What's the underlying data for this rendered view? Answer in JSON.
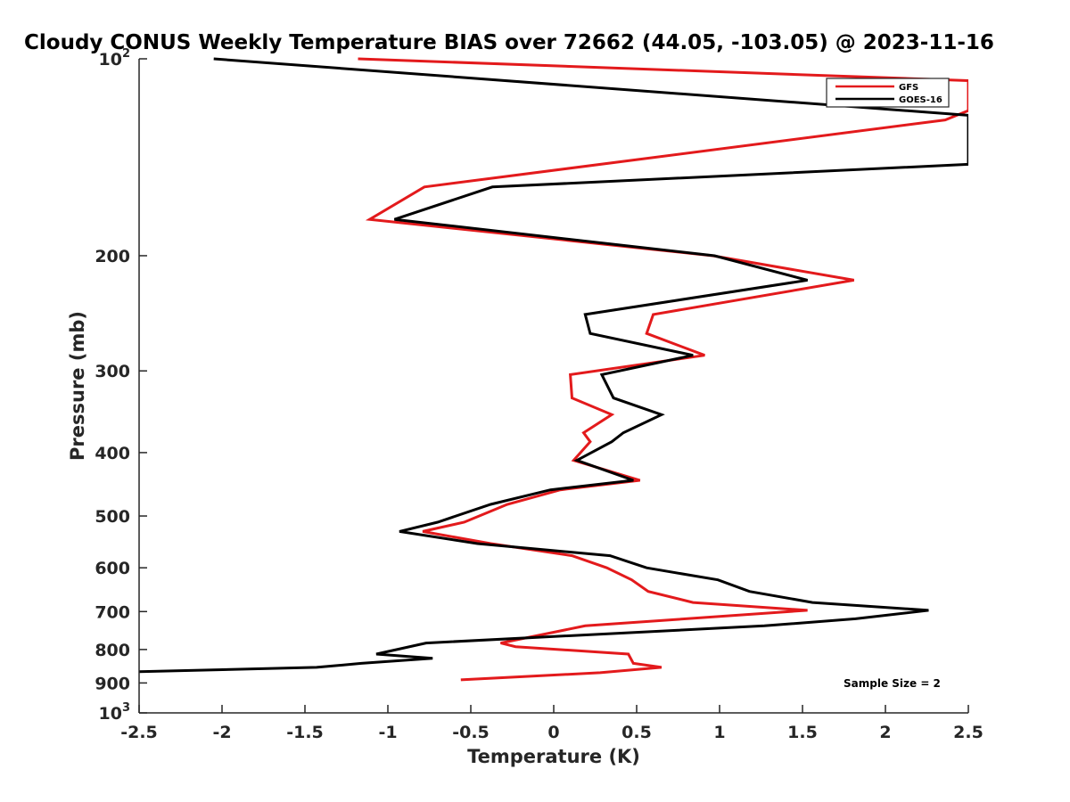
{
  "chart_data": {
    "type": "line",
    "title": "Cloudy CONUS Weekly Temperature BIAS over 72662 (44.05, -103.05) @ 2023-11-16",
    "xlabel": "Temperature (K)",
    "ylabel": "Pressure (mb)",
    "xlim": [
      -2.5,
      2.5
    ],
    "ylim": [
      100,
      1000
    ],
    "yscale": "log",
    "yreversed": true,
    "xticks": [
      "-2.5",
      "-2",
      "-1.5",
      "-1",
      "-0.5",
      "0",
      "0.5",
      "1",
      "1.5",
      "2",
      "2.5"
    ],
    "xtick_values": [
      -2.5,
      -2,
      -1.5,
      -1,
      -0.5,
      0,
      0.5,
      1,
      1.5,
      2,
      2.5
    ],
    "yticks": [
      {
        "value": 100,
        "base": "10",
        "exp": "2"
      },
      {
        "value": 200,
        "label": "200"
      },
      {
        "value": 300,
        "label": "300"
      },
      {
        "value": 400,
        "label": "400"
      },
      {
        "value": 500,
        "label": "500"
      },
      {
        "value": 600,
        "label": "600"
      },
      {
        "value": 700,
        "label": "700"
      },
      {
        "value": 800,
        "label": "800"
      },
      {
        "value": 900,
        "label": "900"
      },
      {
        "value": 1000,
        "base": "10",
        "exp": "3"
      }
    ],
    "legend_position": "top-right",
    "annotation": "Sample Size = 2",
    "series": [
      {
        "name": "GFS",
        "color": "#e31a1c",
        "points": [
          {
            "x": -1.18,
            "p": 100
          },
          {
            "x": 2.5,
            "p": 108
          },
          {
            "x": 2.5,
            "p": 120
          },
          {
            "x": 2.36,
            "p": 124
          },
          {
            "x": -0.78,
            "p": 157
          },
          {
            "x": -1.11,
            "p": 176
          },
          {
            "x": 0.96,
            "p": 200
          },
          {
            "x": 1.81,
            "p": 218
          },
          {
            "x": 0.6,
            "p": 246
          },
          {
            "x": 0.56,
            "p": 263
          },
          {
            "x": 0.91,
            "p": 284
          },
          {
            "x": 0.1,
            "p": 304
          },
          {
            "x": 0.11,
            "p": 330
          },
          {
            "x": 0.35,
            "p": 350
          },
          {
            "x": 0.18,
            "p": 373
          },
          {
            "x": 0.22,
            "p": 385
          },
          {
            "x": 0.12,
            "p": 411
          },
          {
            "x": 0.52,
            "p": 441
          },
          {
            "x": 0.04,
            "p": 456
          },
          {
            "x": -0.28,
            "p": 480
          },
          {
            "x": -0.4,
            "p": 494
          },
          {
            "x": -0.54,
            "p": 511
          },
          {
            "x": -0.79,
            "p": 528
          },
          {
            "x": -0.38,
            "p": 551
          },
          {
            "x": 0.11,
            "p": 575
          },
          {
            "x": 0.32,
            "p": 600
          },
          {
            "x": 0.47,
            "p": 626
          },
          {
            "x": 0.57,
            "p": 652
          },
          {
            "x": 0.84,
            "p": 678
          },
          {
            "x": 1.53,
            "p": 697
          },
          {
            "x": 0.19,
            "p": 736
          },
          {
            "x": -0.32,
            "p": 782
          },
          {
            "x": -0.23,
            "p": 792
          },
          {
            "x": 0.45,
            "p": 813
          },
          {
            "x": 0.48,
            "p": 840
          },
          {
            "x": 0.65,
            "p": 852
          },
          {
            "x": 0.28,
            "p": 868
          },
          {
            "x": -0.56,
            "p": 890
          }
        ]
      },
      {
        "name": "GOES-16",
        "color": "#000000",
        "points": [
          {
            "x": -2.05,
            "p": 100
          },
          {
            "x": 2.5,
            "p": 122
          },
          {
            "x": 2.5,
            "p": 145
          },
          {
            "x": -0.37,
            "p": 157
          },
          {
            "x": -0.96,
            "p": 176
          },
          {
            "x": 0.97,
            "p": 200
          },
          {
            "x": 1.53,
            "p": 218
          },
          {
            "x": 0.19,
            "p": 246
          },
          {
            "x": 0.22,
            "p": 263
          },
          {
            "x": 0.84,
            "p": 284
          },
          {
            "x": 0.29,
            "p": 304
          },
          {
            "x": 0.36,
            "p": 330
          },
          {
            "x": 0.65,
            "p": 350
          },
          {
            "x": 0.42,
            "p": 373
          },
          {
            "x": 0.35,
            "p": 385
          },
          {
            "x": 0.14,
            "p": 411
          },
          {
            "x": 0.48,
            "p": 441
          },
          {
            "x": -0.02,
            "p": 456
          },
          {
            "x": -0.38,
            "p": 480
          },
          {
            "x": -0.7,
            "p": 511
          },
          {
            "x": -0.93,
            "p": 528
          },
          {
            "x": -0.46,
            "p": 551
          },
          {
            "x": 0.34,
            "p": 575
          },
          {
            "x": 0.56,
            "p": 600
          },
          {
            "x": 0.99,
            "p": 626
          },
          {
            "x": 1.18,
            "p": 652
          },
          {
            "x": 1.56,
            "p": 678
          },
          {
            "x": 2.26,
            "p": 697
          },
          {
            "x": 1.82,
            "p": 718
          },
          {
            "x": 1.27,
            "p": 736
          },
          {
            "x": -0.77,
            "p": 782
          },
          {
            "x": -1.07,
            "p": 813
          },
          {
            "x": -0.73,
            "p": 825
          },
          {
            "x": -1.16,
            "p": 840
          },
          {
            "x": -1.43,
            "p": 852
          },
          {
            "x": -2.5,
            "p": 865
          }
        ]
      }
    ]
  }
}
